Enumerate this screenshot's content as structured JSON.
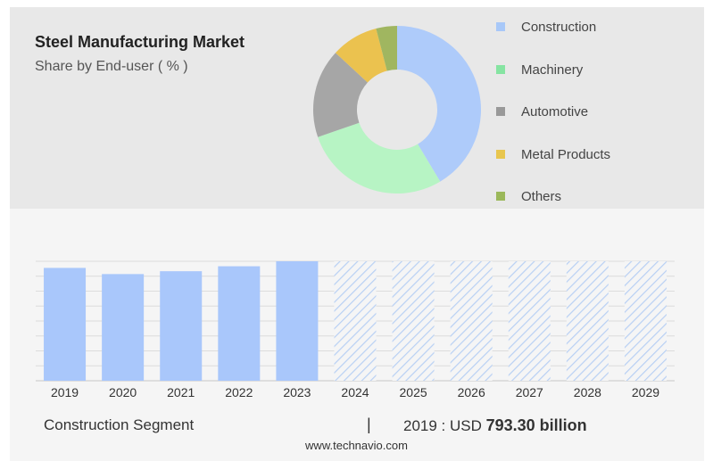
{
  "header": {
    "title": "Steel Manufacturing Market",
    "subtitle": "Share by End-user ( % )"
  },
  "legend": [
    {
      "label": "Construction",
      "color": "#a8c8f8"
    },
    {
      "label": "Machinery",
      "color": "#86e4a2"
    },
    {
      "label": "Automotive",
      "color": "#999999"
    },
    {
      "label": "Metal Products",
      "color": "#e8c64e"
    },
    {
      "label": "Others",
      "color": "#9bb85a"
    }
  ],
  "chart_data": [
    {
      "type": "pie",
      "title": "Steel Manufacturing Market",
      "subtitle": "Share by End-user ( % )",
      "categories": [
        "Construction",
        "Machinery",
        "Automotive",
        "Metal Products",
        "Others"
      ],
      "values": [
        41,
        28,
        17,
        9,
        4
      ],
      "colors": [
        "#aecbfa",
        "#b7f4c4",
        "#a6a6a6",
        "#ebc24f",
        "#a0b660"
      ],
      "donut": true
    },
    {
      "type": "bar",
      "categories": [
        "2019",
        "2020",
        "2021",
        "2022",
        "2023",
        "2024",
        "2025",
        "2026",
        "2027",
        "2028",
        "2029"
      ],
      "values": [
        793.3,
        750,
        770,
        805,
        840,
        null,
        null,
        null,
        null,
        null,
        null
      ],
      "forecast": [
        "2024",
        "2025",
        "2026",
        "2027",
        "2028",
        "2029"
      ],
      "color": "#a9c7fb",
      "forecast_color": "#b8d0f4",
      "ylim": [
        0,
        840
      ],
      "grid": true,
      "axis_labels_shown": false
    }
  ],
  "footer": {
    "segment_label": "Construction Segment",
    "separator": "|",
    "value_prefix": "2019 : USD",
    "value": "793.30 billion",
    "source": "www.technavio.com"
  }
}
